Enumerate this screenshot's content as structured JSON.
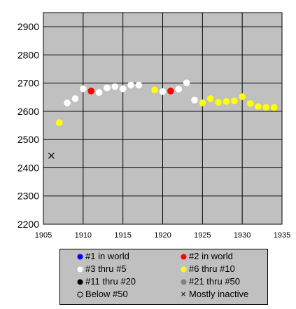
{
  "chart_data": {
    "type": "scatter",
    "xlim": [
      1905,
      1935
    ],
    "ylim": [
      2200,
      2950
    ],
    "x_ticks": [
      1905,
      1910,
      1915,
      1920,
      1925,
      1930,
      1935
    ],
    "y_ticks": [
      2200,
      2300,
      2400,
      2500,
      2600,
      2700,
      2800,
      2900
    ],
    "grid": true,
    "plot_background": "#c0c0c0",
    "legend_position": "bottom",
    "categories": [
      {
        "key": "rank1",
        "label": "#1 in world",
        "color": "#0000ff",
        "marker": "dot"
      },
      {
        "key": "rank2",
        "label": "#2 in world",
        "color": "#ff0000",
        "marker": "dot"
      },
      {
        "key": "rank3_5",
        "label": "#3 thru #5",
        "color": "#ffffff",
        "marker": "dot"
      },
      {
        "key": "rank6_10",
        "label": "#6 thru #10",
        "color": "#ffff00",
        "marker": "dot"
      },
      {
        "key": "rank11_20",
        "label": "#11 thru #20",
        "color": "#000000",
        "marker": "dot"
      },
      {
        "key": "rank21_50",
        "label": "#21 thru #50",
        "color": "#808080",
        "marker": "dot"
      },
      {
        "key": "below50",
        "label": "Below #50",
        "color": "#ffffff",
        "marker": "ring"
      },
      {
        "key": "inactive",
        "label": "Mostly inactive",
        "color": "#000000",
        "marker": "x"
      }
    ],
    "points": [
      {
        "x": 1906,
        "y": 2443,
        "cat": "inactive"
      },
      {
        "x": 1907,
        "y": 2560,
        "cat": "rank6_10"
      },
      {
        "x": 1908,
        "y": 2630,
        "cat": "rank3_5"
      },
      {
        "x": 1909,
        "y": 2645,
        "cat": "rank3_5"
      },
      {
        "x": 1910,
        "y": 2680,
        "cat": "rank3_5"
      },
      {
        "x": 1911,
        "y": 2672,
        "cat": "rank2"
      },
      {
        "x": 1912,
        "y": 2667,
        "cat": "rank3_5"
      },
      {
        "x": 1913,
        "y": 2683,
        "cat": "rank3_5"
      },
      {
        "x": 1914,
        "y": 2688,
        "cat": "rank3_5"
      },
      {
        "x": 1915,
        "y": 2680,
        "cat": "rank3_5"
      },
      {
        "x": 1916,
        "y": 2693,
        "cat": "rank3_5"
      },
      {
        "x": 1917,
        "y": 2693,
        "cat": "rank3_5"
      },
      {
        "x": 1919,
        "y": 2676,
        "cat": "rank6_10"
      },
      {
        "x": 1920,
        "y": 2670,
        "cat": "rank3_5"
      },
      {
        "x": 1921,
        "y": 2672,
        "cat": "rank2"
      },
      {
        "x": 1922,
        "y": 2679,
        "cat": "rank3_5"
      },
      {
        "x": 1923,
        "y": 2701,
        "cat": "rank3_5"
      },
      {
        "x": 1924,
        "y": 2640,
        "cat": "rank3_5"
      },
      {
        "x": 1925,
        "y": 2630,
        "cat": "rank6_10"
      },
      {
        "x": 1926,
        "y": 2645,
        "cat": "rank6_10"
      },
      {
        "x": 1927,
        "y": 2632,
        "cat": "rank6_10"
      },
      {
        "x": 1928,
        "y": 2635,
        "cat": "rank6_10"
      },
      {
        "x": 1929,
        "y": 2637,
        "cat": "rank6_10"
      },
      {
        "x": 1930,
        "y": 2652,
        "cat": "rank6_10"
      },
      {
        "x": 1931,
        "y": 2628,
        "cat": "rank6_10"
      },
      {
        "x": 1932,
        "y": 2617,
        "cat": "rank6_10"
      },
      {
        "x": 1933,
        "y": 2614,
        "cat": "rank6_10"
      },
      {
        "x": 1934,
        "y": 2614,
        "cat": "rank6_10"
      }
    ]
  }
}
